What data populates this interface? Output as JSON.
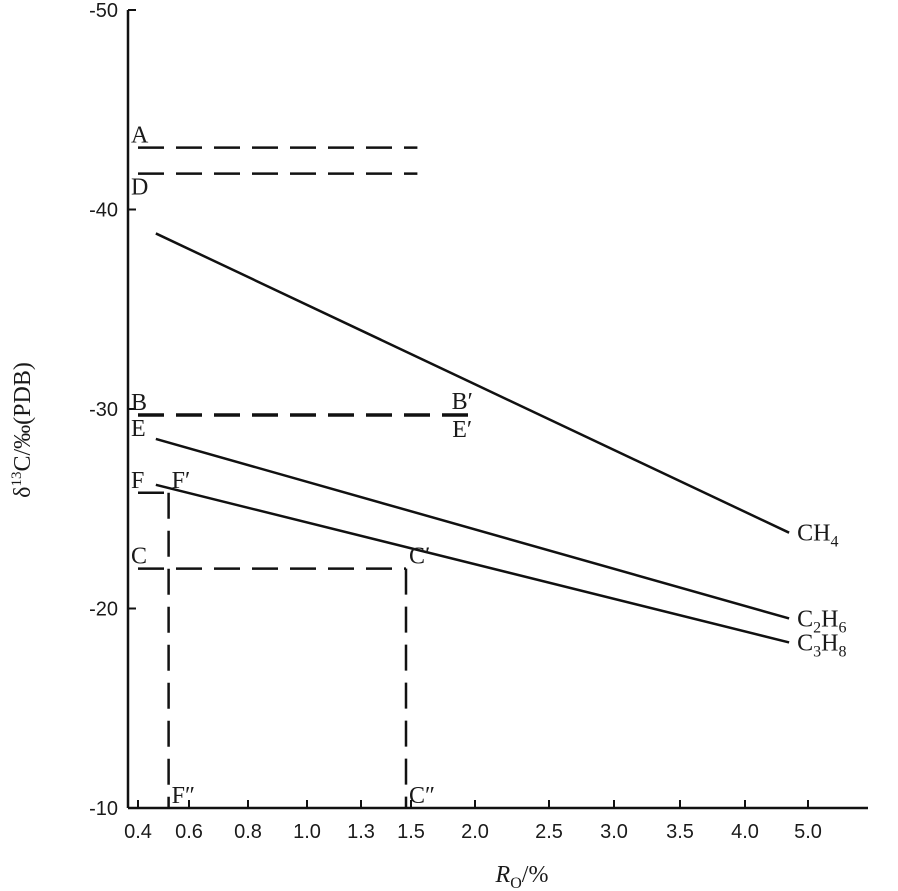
{
  "chart_data": {
    "type": "line",
    "xlabel": "R",
    "xlabel_sub": "O",
    "xlabel_unit": "/%",
    "ylabel": "δ13C/‰(PDB)",
    "x_ticks": [
      "0.4",
      "0.6",
      "0.8",
      "1.0",
      "1.3",
      "1.5",
      "2.0",
      "2.5",
      "3.0",
      "3.5",
      "4.0",
      "5.0"
    ],
    "y_ticks": [
      -50,
      -40,
      -30,
      -20,
      -10
    ],
    "ylim": [
      -10,
      -50
    ],
    "x_scale": "categorical-nonlinear",
    "grid": false,
    "legend": "none",
    "series": [
      {
        "name": "CH4",
        "label": {
          "main": "CH",
          "sub": "4"
        },
        "points": [
          {
            "x": 0.47,
            "y": -38.8
          },
          {
            "x": 4.7,
            "y": -23.8
          }
        ]
      },
      {
        "name": "C2H6",
        "label": {
          "main1": "C",
          "sub1": "2",
          "main2": "H",
          "sub2": "6"
        },
        "points": [
          {
            "x": 0.47,
            "y": -28.5
          },
          {
            "x": 4.7,
            "y": -19.5
          }
        ]
      },
      {
        "name": "C3H8",
        "label": {
          "main1": "C",
          "sub1": "3",
          "main2": "H",
          "sub2": "8"
        },
        "points": [
          {
            "x": 0.47,
            "y": -26.2
          },
          {
            "x": 4.7,
            "y": -18.3
          }
        ]
      }
    ],
    "reference_lines": [
      {
        "id": "A",
        "bold": false,
        "points": [
          {
            "x": 0.4,
            "y": -43.1
          },
          {
            "x": 1.55,
            "y": -43.1
          }
        ]
      },
      {
        "id": "D",
        "bold": false,
        "points": [
          {
            "x": 0.4,
            "y": -41.8
          },
          {
            "x": 1.55,
            "y": -41.8
          }
        ]
      },
      {
        "id": "B-B'",
        "bold": true,
        "points": [
          {
            "x": 0.4,
            "y": -29.7
          },
          {
            "x": 1.98,
            "y": -29.7
          }
        ]
      },
      {
        "id": "F-F'",
        "bold": false,
        "points": [
          {
            "x": 0.4,
            "y": -25.8
          },
          {
            "x": 0.52,
            "y": -25.8
          }
        ]
      },
      {
        "id": "F'-F''",
        "bold": false,
        "points": [
          {
            "x": 0.52,
            "y": -25.8
          },
          {
            "x": 0.52,
            "y": -10
          }
        ]
      },
      {
        "id": "C-C'",
        "bold": false,
        "points": [
          {
            "x": 0.4,
            "y": -22
          },
          {
            "x": 1.48,
            "y": -22
          }
        ]
      },
      {
        "id": "C'-C''",
        "bold": false,
        "points": [
          {
            "x": 1.48,
            "y": -22
          },
          {
            "x": 1.48,
            "y": -10
          }
        ]
      }
    ],
    "annotations": [
      {
        "text": "A",
        "x": 0.4,
        "y": -43.1,
        "pos": "above-right"
      },
      {
        "text": "D",
        "x": 0.4,
        "y": -41.8,
        "pos": "below-right"
      },
      {
        "text": "B",
        "x": 0.4,
        "y": -29.7,
        "pos": "above-right"
      },
      {
        "text": "E",
        "x": 0.4,
        "y": -29.7,
        "pos": "below-right"
      },
      {
        "text": "B′",
        "x": 1.9,
        "y": -29.7,
        "pos": "above"
      },
      {
        "text": "E′",
        "x": 1.9,
        "y": -29.7,
        "pos": "below"
      },
      {
        "text": "F",
        "x": 0.4,
        "y": -25.8,
        "pos": "above-right"
      },
      {
        "text": "F′",
        "x": 0.52,
        "y": -25.8,
        "pos": "above-right"
      },
      {
        "text": "C",
        "x": 0.4,
        "y": -22,
        "pos": "above-right"
      },
      {
        "text": "C′",
        "x": 1.48,
        "y": -22,
        "pos": "above-right"
      },
      {
        "text": "F″",
        "x": 0.52,
        "y": -10,
        "pos": "above-right"
      },
      {
        "text": "C″",
        "x": 1.48,
        "y": -10,
        "pos": "above-right"
      }
    ]
  }
}
